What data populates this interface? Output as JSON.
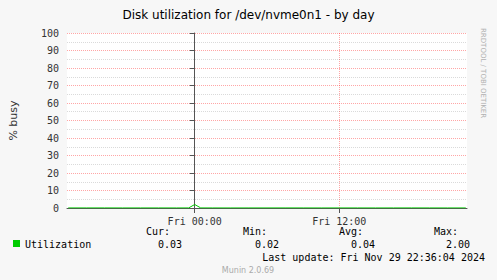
{
  "chart_data": {
    "type": "line",
    "title": "Disk utilization for /dev/nvme0n1 - by day",
    "ylabel": "% busy",
    "x": [
      -10.5,
      -9,
      -7.5,
      -6,
      -4.5,
      -3,
      -1.5,
      -0.5,
      0,
      0.5,
      1.5,
      3,
      4.5,
      6,
      7.5,
      9,
      10.5,
      12,
      13.5,
      15,
      16.5,
      18,
      19.5,
      21,
      22.5
    ],
    "series": [
      {
        "name": "Utilization",
        "color": "#00cc00",
        "values": [
          0.04,
          0.04,
          0.05,
          0.03,
          0.04,
          0.04,
          0.03,
          0.05,
          2.0,
          0.05,
          0.04,
          0.03,
          0.04,
          0.04,
          0.05,
          0.04,
          0.03,
          0.04,
          0.04,
          0.03,
          0.04,
          0.05,
          0.04,
          0.03,
          0.03
        ]
      }
    ],
    "xlim": [
      -10.6,
      22.6
    ],
    "xticks": [
      {
        "value": 0,
        "label": "Fri 00:00"
      },
      {
        "value": 12,
        "label": "Fri 12:00"
      }
    ],
    "ylim": [
      0,
      100
    ],
    "yticks": [
      0,
      10,
      20,
      30,
      40,
      50,
      60,
      70,
      80,
      90,
      100
    ],
    "grid": true,
    "stats": [
      {
        "name": "Cur:",
        "value": 0.03
      },
      {
        "name": "Min:",
        "value": 0.02
      },
      {
        "name": "Avg:",
        "value": 0.04
      },
      {
        "name": "Max:",
        "value": 2.0
      }
    ],
    "last_update": "Last update: Fri Nov 29 22:36:04 2024",
    "footer": "Munin 2.0.69",
    "watermark": "RRDTOOL / TOBI OETIKER"
  }
}
